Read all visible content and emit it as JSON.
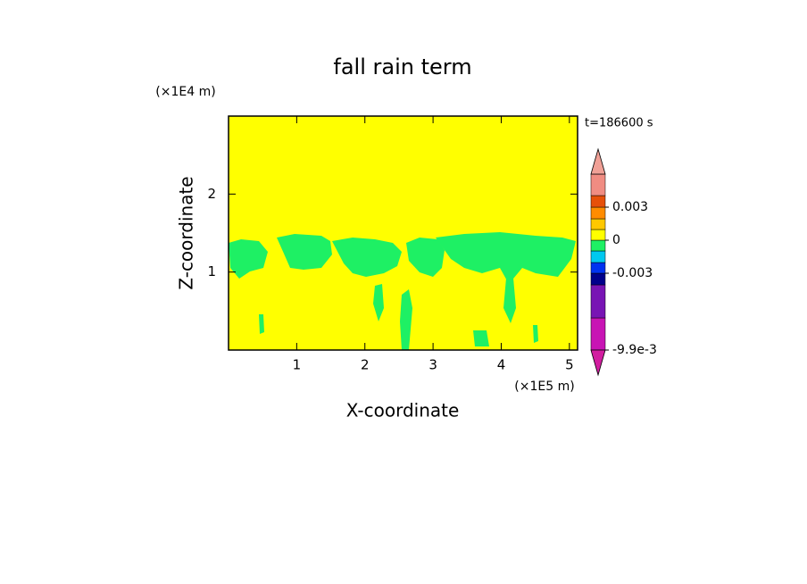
{
  "chart_data": {
    "type": "contour",
    "title": "fall rain term",
    "x_label": "X-coordinate",
    "y_label": "Z-coordinate",
    "x_unit": "(×1E5 m)",
    "y_unit": "(×1E4 m)",
    "time_label": "t=186600 s",
    "xlim": [
      0,
      5.12
    ],
    "ylim": [
      0,
      3
    ],
    "xticks": [
      1,
      2,
      3,
      4,
      5
    ],
    "yticks": [
      1,
      2
    ],
    "background_color": "#ffff00",
    "region_color": "#1ef064",
    "colorbar": {
      "levels": [
        -0.0099,
        -0.006,
        -0.004,
        -0.003,
        -0.002,
        -0.001,
        0,
        0.001,
        0.002,
        0.003,
        0.004,
        0.006
      ],
      "colors": [
        "#c814b4",
        "#7814b4",
        "#00008c",
        "#0032f0",
        "#00c8f0",
        "#1ef064",
        "#ffff00",
        "#ffc800",
        "#ff8c00",
        "#e6500a",
        "#f08c82"
      ],
      "under_color": "#d21ea0",
      "over_color": "#f0a096",
      "ticks": [
        0.003,
        0,
        -0.003,
        {
          "value": -0.0099,
          "label": "-9.9e-3"
        }
      ]
    }
  }
}
